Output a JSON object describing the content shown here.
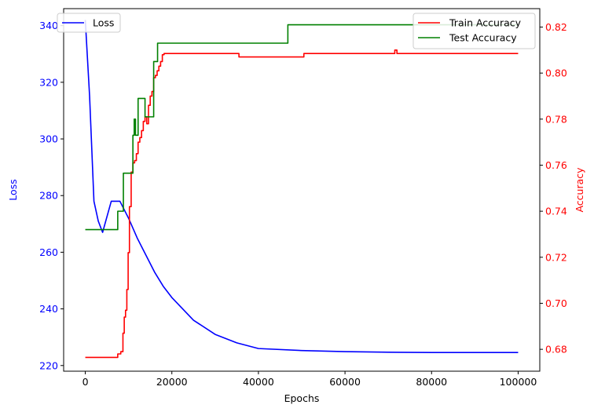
{
  "chart_data": {
    "type": "line",
    "title": "",
    "xlabel": "Epochs",
    "ylabel_left": "Loss",
    "ylabel_right": "Accuracy",
    "xlim": [
      -5000,
      105000
    ],
    "ylim_left": [
      218,
      346
    ],
    "ylim_right": [
      0.6705,
      0.828
    ],
    "xticks": [
      0,
      20000,
      40000,
      60000,
      80000,
      100000
    ],
    "yticks_left": [
      220,
      240,
      260,
      280,
      300,
      320,
      340
    ],
    "yticks_right": [
      0.68,
      0.7,
      0.72,
      0.74,
      0.76,
      0.78,
      0.8,
      0.82
    ],
    "grid": false,
    "legend_left": {
      "placement": "upper-left",
      "entries": [
        {
          "label": "Loss",
          "color": "#0000ff"
        }
      ]
    },
    "legend_right": {
      "placement": "upper-right",
      "entries": [
        {
          "label": "Train Accuracy",
          "color": "#ff0000"
        },
        {
          "label": "Test Accuracy",
          "color": "#008000"
        }
      ]
    },
    "colors": {
      "left_axis": "#0000ff",
      "right_axis": "#ff0000"
    },
    "series": [
      {
        "name": "Loss",
        "axis": "left",
        "color": "#0000ff",
        "x": [
          0,
          1000,
          2000,
          3000,
          4000,
          6000,
          8000,
          10000,
          12000,
          14000,
          16000,
          18000,
          20000,
          25000,
          30000,
          35000,
          40000,
          50000,
          60000,
          70000,
          80000,
          90000,
          100000
        ],
        "y": [
          342,
          315,
          278,
          271,
          267,
          278,
          278,
          272,
          265,
          259,
          253,
          248,
          244,
          236,
          231,
          228,
          226,
          225.3,
          224.9,
          224.7,
          224.6,
          224.6,
          224.6
        ]
      },
      {
        "name": "Train Accuracy",
        "axis": "right",
        "color": "#ff0000",
        "step": true,
        "x": [
          0,
          7500,
          8200,
          8700,
          9000,
          9300,
          9600,
          9900,
          10200,
          10600,
          11000,
          11400,
          11800,
          12200,
          12600,
          13000,
          13400,
          13800,
          14200,
          14600,
          15000,
          15400,
          15800,
          16200,
          16600,
          17000,
          17400,
          17800,
          18200,
          35500,
          50500,
          71500,
          72000,
          100000
        ],
        "y": [
          0.6765,
          0.678,
          0.679,
          0.687,
          0.694,
          0.697,
          0.706,
          0.722,
          0.742,
          0.757,
          0.761,
          0.762,
          0.765,
          0.77,
          0.772,
          0.775,
          0.779,
          0.781,
          0.778,
          0.786,
          0.79,
          0.792,
          0.798,
          0.799,
          0.801,
          0.803,
          0.805,
          0.808,
          0.8085,
          0.807,
          0.8085,
          0.81,
          0.8085,
          0.8085
        ]
      },
      {
        "name": "Test Accuracy",
        "axis": "right",
        "color": "#008000",
        "step": true,
        "x": [
          0,
          7500,
          8800,
          11000,
          11300,
          11600,
          12200,
          13800,
          15800,
          16700,
          46800,
          100000
        ],
        "y": [
          0.732,
          0.74,
          0.7565,
          0.773,
          0.78,
          0.773,
          0.789,
          0.781,
          0.805,
          0.813,
          0.821,
          0.821
        ]
      }
    ]
  }
}
